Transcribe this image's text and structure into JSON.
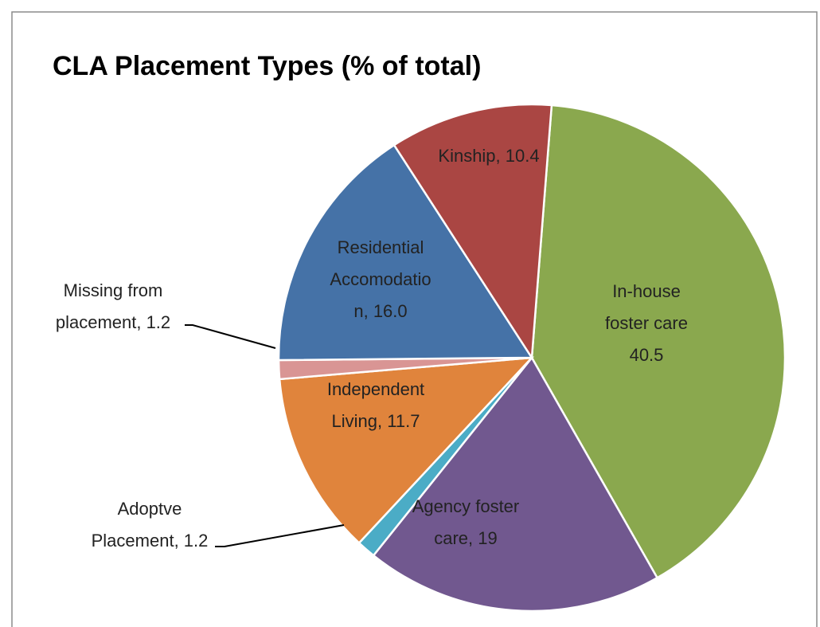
{
  "chart_data": {
    "type": "pie",
    "title": "CLA Placement Types (% of total)",
    "labels": [
      [
        "In-house",
        "foster care",
        "40.5"
      ],
      [
        "Agency foster",
        "care, 19"
      ],
      [
        "Adoptve",
        "Placement, 1.2"
      ],
      [
        "Independent",
        "Living, 11.7"
      ],
      [
        "Missing from",
        "placement, 1.2"
      ],
      [
        "Residential",
        "Accomodatio",
        "n, 16.0"
      ],
      [
        "Kinship, 10.4"
      ]
    ],
    "values": [
      40.5,
      19,
      1.2,
      11.7,
      1.2,
      16.0,
      10.4
    ],
    "colors": [
      "#8aa84e",
      "#71588f",
      "#4bacc6",
      "#e0843c",
      "#d99594",
      "#4572a7",
      "#aa4643"
    ]
  }
}
